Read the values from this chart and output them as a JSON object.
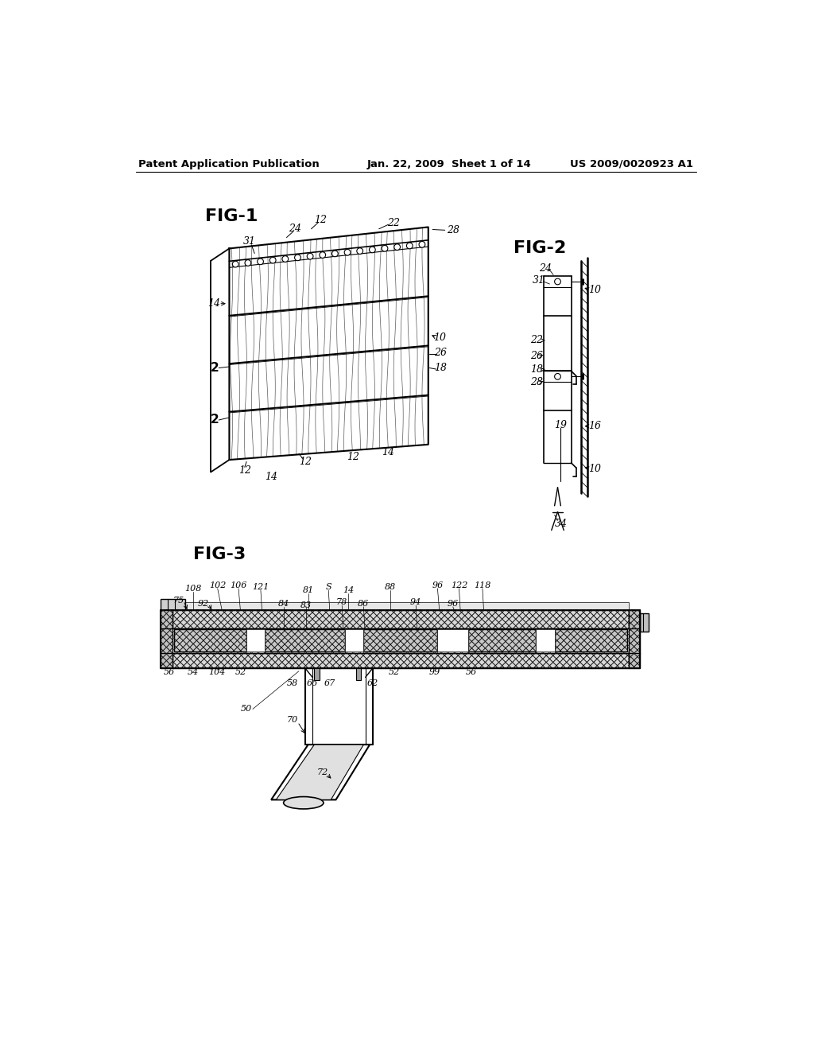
{
  "background_color": "#ffffff",
  "header_left": "Patent Application Publication",
  "header_center": "Jan. 22, 2009  Sheet 1 of 14",
  "header_right": "US 2009/0020923 A1",
  "line_color": "#000000",
  "text_color": "#000000"
}
